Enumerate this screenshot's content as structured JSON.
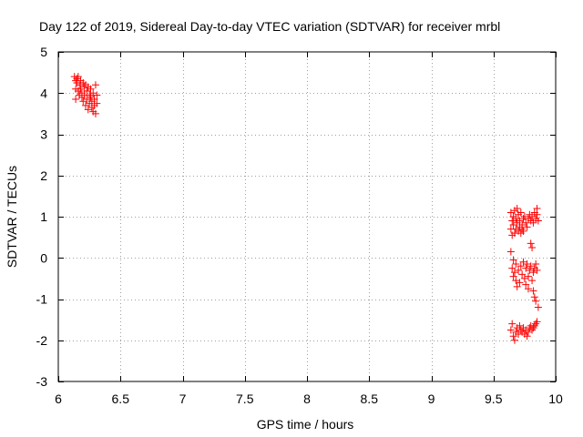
{
  "chart_data": {
    "type": "scatter",
    "title": "Day 122 of 2019, Sidereal Day-to-day VTEC variation (SDTVAR) for receiver mrbl",
    "xlabel": "GPS time / hours",
    "ylabel": "SDTVAR / TECUs",
    "xlim": [
      6,
      10
    ],
    "ylim": [
      -3,
      5
    ],
    "x_ticks": [
      6,
      6.5,
      7,
      7.5,
      8,
      8.5,
      9,
      9.5,
      10
    ],
    "y_ticks": [
      -3,
      -2,
      -1,
      0,
      1,
      2,
      3,
      4,
      5
    ],
    "x_tick_labels": [
      "6",
      "6.5",
      "7",
      "7.5",
      "8",
      "8.5",
      "9",
      "9.5",
      "10"
    ],
    "y_tick_labels": [
      "-3",
      "-2",
      "-1",
      "0",
      "1",
      "2",
      "3",
      "4",
      "5"
    ],
    "grid": true,
    "legend": "none",
    "marker": "plus",
    "marker_color": "#ff0000",
    "series": [
      {
        "points": [
          [
            6.13,
            4.4
          ],
          [
            6.14,
            4.3
          ],
          [
            6.14,
            4.1
          ],
          [
            6.14,
            3.85
          ],
          [
            6.15,
            4.35
          ],
          [
            6.15,
            4.25
          ],
          [
            6.16,
            4.05
          ],
          [
            6.16,
            4.4
          ],
          [
            6.17,
            4.2
          ],
          [
            6.17,
            3.95
          ],
          [
            6.18,
            4.3
          ],
          [
            6.18,
            4.1
          ],
          [
            6.19,
            3.9
          ],
          [
            6.19,
            4.0
          ],
          [
            6.2,
            4.25
          ],
          [
            6.2,
            3.8
          ],
          [
            6.21,
            4.15
          ],
          [
            6.21,
            3.95
          ],
          [
            6.22,
            3.7
          ],
          [
            6.22,
            4.2
          ],
          [
            6.23,
            4.05
          ],
          [
            6.23,
            3.85
          ],
          [
            6.24,
            3.6
          ],
          [
            6.24,
            4.15
          ],
          [
            6.25,
            3.95
          ],
          [
            6.25,
            3.75
          ],
          [
            6.26,
            4.1
          ],
          [
            6.26,
            3.9
          ],
          [
            6.27,
            3.65
          ],
          [
            6.27,
            3.8
          ],
          [
            6.28,
            4.0
          ],
          [
            6.28,
            3.55
          ],
          [
            6.29,
            3.85
          ],
          [
            6.29,
            3.7
          ],
          [
            6.3,
            4.2
          ],
          [
            6.3,
            3.5
          ],
          [
            6.31,
            3.75
          ],
          [
            6.31,
            3.95
          ],
          [
            9.64,
            1.1
          ],
          [
            9.64,
            0.7
          ],
          [
            9.65,
            0.9
          ],
          [
            9.65,
            0.55
          ],
          [
            9.66,
            1.0
          ],
          [
            9.66,
            0.8
          ],
          [
            9.67,
            1.15
          ],
          [
            9.67,
            0.6
          ],
          [
            9.68,
            0.95
          ],
          [
            9.68,
            0.7
          ],
          [
            9.69,
            1.2
          ],
          [
            9.69,
            0.85
          ],
          [
            9.7,
            0.65
          ],
          [
            9.7,
            1.05
          ],
          [
            9.71,
            0.75
          ],
          [
            9.71,
            0.9
          ],
          [
            9.72,
            0.6
          ],
          [
            9.72,
            1.1
          ],
          [
            9.73,
            0.8
          ],
          [
            9.73,
            0.7
          ],
          [
            9.74,
            0.95
          ],
          [
            9.74,
            0.65
          ],
          [
            9.75,
            1.0
          ],
          [
            9.76,
            0.85
          ],
          [
            9.77,
            0.75
          ],
          [
            9.78,
            0.95
          ],
          [
            9.79,
            1.05
          ],
          [
            9.8,
            0.9
          ],
          [
            9.81,
            1.0
          ],
          [
            9.82,
            0.85
          ],
          [
            9.83,
            1.1
          ],
          [
            9.84,
            0.95
          ],
          [
            9.85,
            1.2
          ],
          [
            9.85,
            1.05
          ],
          [
            9.86,
            0.9
          ],
          [
            9.64,
            0.15
          ],
          [
            9.65,
            -0.25
          ],
          [
            9.66,
            -0.45
          ],
          [
            9.66,
            -0.05
          ],
          [
            9.67,
            -0.35
          ],
          [
            9.68,
            -0.55
          ],
          [
            9.68,
            -0.15
          ],
          [
            9.69,
            -0.7
          ],
          [
            9.7,
            -0.3
          ],
          [
            9.71,
            -0.6
          ],
          [
            9.72,
            -0.2
          ],
          [
            9.73,
            -0.4
          ],
          [
            9.74,
            -0.1
          ],
          [
            9.75,
            -0.5
          ],
          [
            9.76,
            -0.25
          ],
          [
            9.76,
            -0.65
          ],
          [
            9.77,
            -0.15
          ],
          [
            9.78,
            -0.45
          ],
          [
            9.78,
            -0.75
          ],
          [
            9.79,
            -0.3
          ],
          [
            9.8,
            -0.2
          ],
          [
            9.8,
            0.35
          ],
          [
            9.81,
            -0.55
          ],
          [
            9.81,
            0.25
          ],
          [
            9.82,
            -0.35
          ],
          [
            9.82,
            -0.8
          ],
          [
            9.83,
            -0.25
          ],
          [
            9.83,
            -0.95
          ],
          [
            9.84,
            -1.05
          ],
          [
            9.84,
            -0.15
          ],
          [
            9.85,
            -0.3
          ],
          [
            9.86,
            -1.2
          ],
          [
            9.64,
            -1.75
          ],
          [
            9.65,
            -1.6
          ],
          [
            9.66,
            -1.9
          ],
          [
            9.67,
            -2.0
          ],
          [
            9.68,
            -1.8
          ],
          [
            9.69,
            -1.7
          ],
          [
            9.7,
            -1.85
          ],
          [
            9.71,
            -1.65
          ],
          [
            9.72,
            -1.75
          ],
          [
            9.73,
            -1.8
          ],
          [
            9.74,
            -1.7
          ],
          [
            9.75,
            -1.85
          ],
          [
            9.76,
            -1.75
          ],
          [
            9.77,
            -1.9
          ],
          [
            9.78,
            -1.8
          ],
          [
            9.79,
            -1.7
          ],
          [
            9.8,
            -1.65
          ],
          [
            9.81,
            -1.75
          ],
          [
            9.82,
            -1.7
          ],
          [
            9.83,
            -1.65
          ],
          [
            9.84,
            -1.6
          ],
          [
            9.85,
            -1.55
          ]
        ]
      }
    ]
  }
}
